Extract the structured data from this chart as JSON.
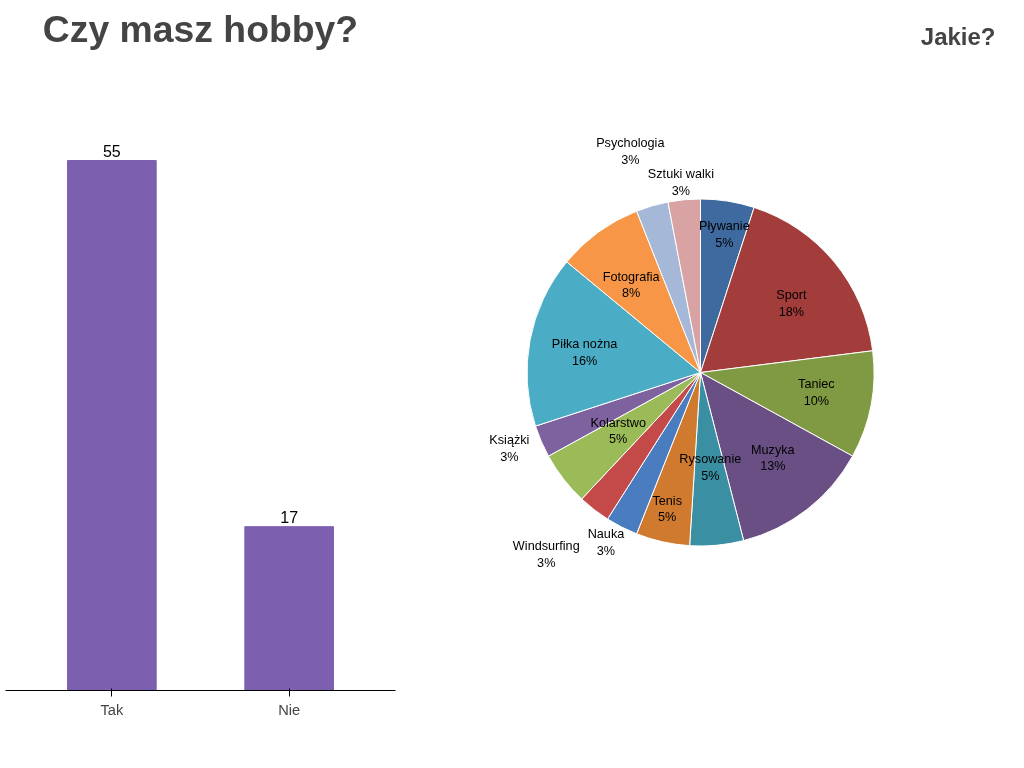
{
  "chart_data": [
    {
      "type": "bar",
      "title": "Czy masz hobby?",
      "categories": [
        "Tak",
        "Nie"
      ],
      "values": [
        55,
        17
      ],
      "color": "#7d5fb0",
      "data_labels": true,
      "grid": false
    },
    {
      "type": "pie",
      "title": "Jakie?",
      "categories": [
        "Pływanie",
        "Sport",
        "Taniec",
        "Muzyka",
        "Rysowanie",
        "Tenis",
        "Nauka",
        "Windsurfing",
        "Kolarstwo",
        "Książki",
        "Piłka nożna",
        "Fotografia",
        "Psychologia",
        "Sztuki walki"
      ],
      "values": [
        5,
        18,
        10,
        13,
        5,
        5,
        3,
        3,
        5,
        3,
        16,
        8,
        3,
        3
      ],
      "value_labels": [
        "5%",
        "18%",
        "10%",
        "13%",
        "5%",
        "5%",
        "3%",
        "3%",
        "5%",
        "3%",
        "16%",
        "8%",
        "3%",
        "3%"
      ],
      "colors": [
        "#3f6aa0",
        "#a23d3b",
        "#7f9a43",
        "#6a4f85",
        "#3a8fa3",
        "#d07a30",
        "#4a7cc0",
        "#c44a4a",
        "#9bbb59",
        "#7e62a0",
        "#4bacc6",
        "#f79646",
        "#a5b8d8",
        "#d9a3a3"
      ]
    }
  ]
}
